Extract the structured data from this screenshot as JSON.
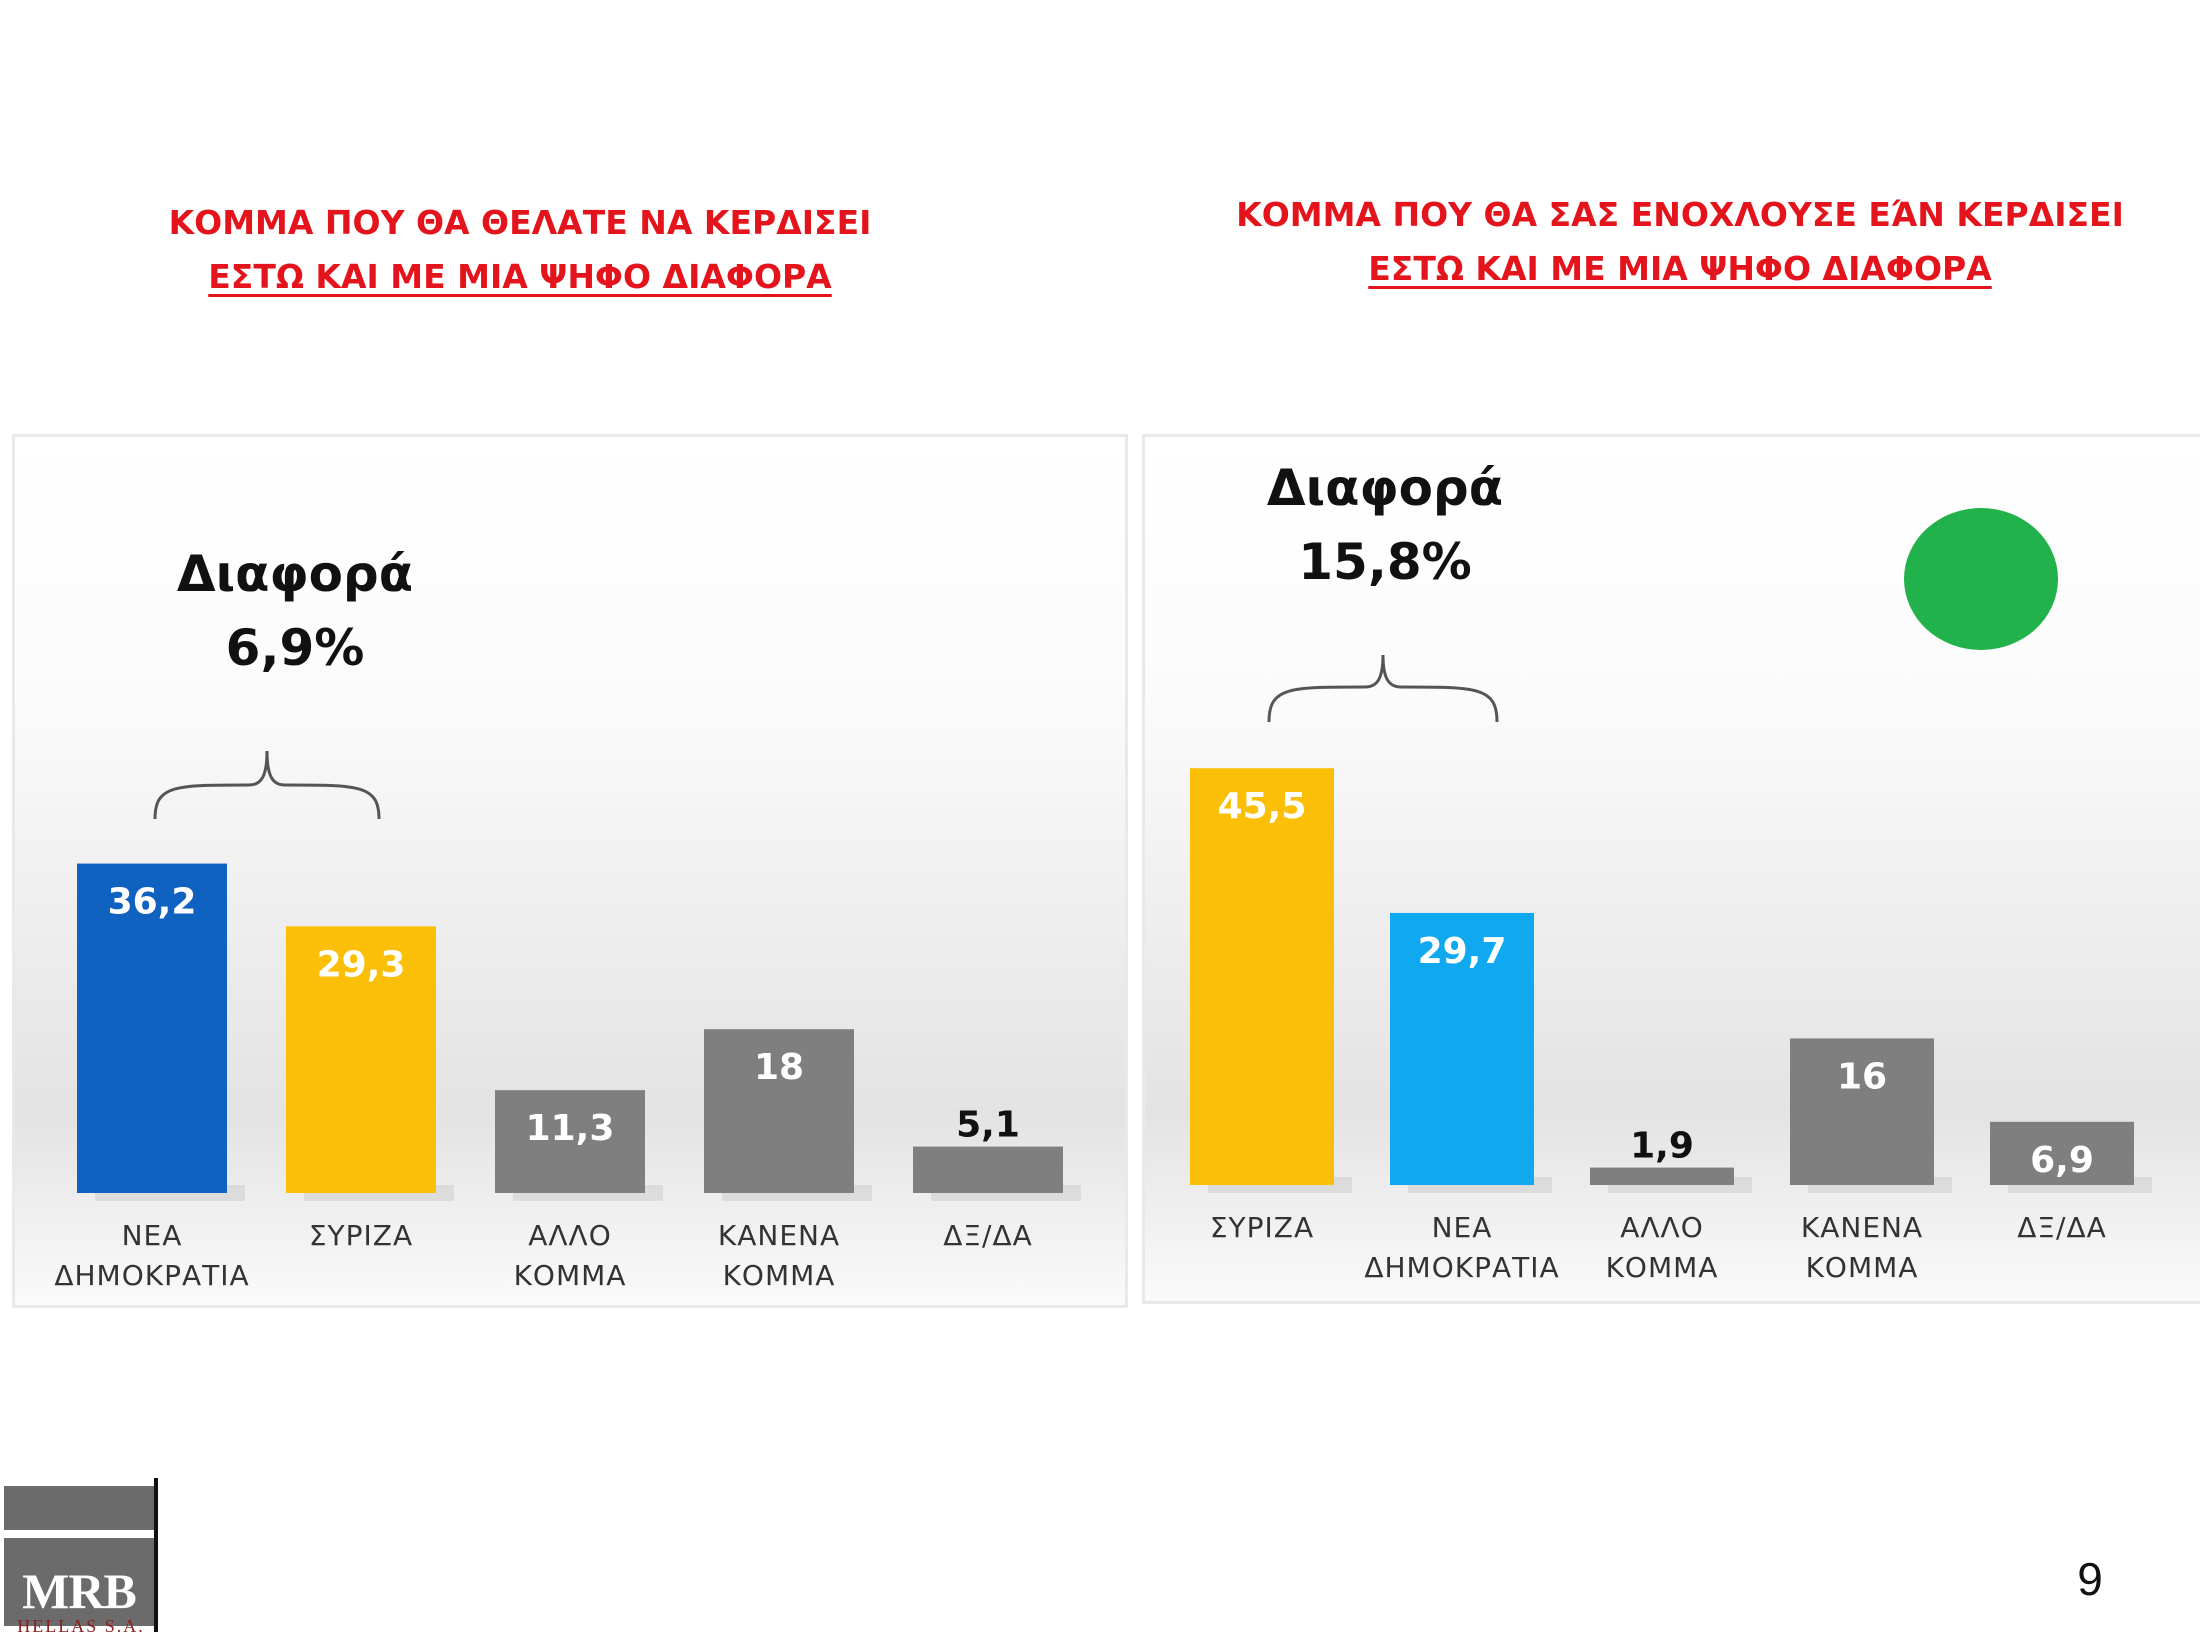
{
  "slide": {
    "page_number": "9",
    "logo_text": "MRB",
    "logo_subtext": "HELLAS S.A."
  },
  "colors": {
    "title_red": "#e3141b",
    "nd_blue_dark": "#0f62c0",
    "nd_blue_light": "#10a9ef",
    "syriza_yellow": "#fcbf08",
    "gray": "#7f7f7f",
    "green_dot": "#22b24c"
  },
  "chart_data": [
    {
      "type": "bar",
      "title_line1": "ΚΟΜΜΑ ΠΟΥ ΘΑ ΘΕΛΑΤΕ ΝΑ ΚΕΡΔΙΣΕΙ",
      "title_line2": "ΕΣΤΩ ΚΑΙ ΜΕ ΜΙΑ ΨΗΦΟ ΔΙΑΦΟΡΑ",
      "difference_label": "Διαφορά",
      "difference_value": "6,9%",
      "ylim": [
        0,
        40
      ],
      "categories": [
        [
          "ΝΕΑ",
          "ΔΗΜΟΚΡΑΤΙΑ"
        ],
        [
          "ΣΥΡΙΖΑ"
        ],
        [
          "ΑΛΛΟ",
          "ΚΟΜΜΑ"
        ],
        [
          "ΚΑΝΕΝΑ",
          "ΚΟΜΜΑ"
        ],
        [
          "ΔΞ/ΔΑ"
        ]
      ],
      "values": [
        36.2,
        29.3,
        11.3,
        18,
        5.1
      ],
      "value_labels": [
        "36,2",
        "29,3",
        "11,3",
        "18",
        "5,1"
      ],
      "bar_colors": [
        "#0f62c0",
        "#fcbf08",
        "#7f7f7f",
        "#7f7f7f",
        "#7f7f7f"
      ],
      "label_colors": [
        "#ffffff",
        "#ffffff",
        "#ffffff",
        "#ffffff",
        "#ffffff"
      ]
    },
    {
      "type": "bar",
      "title_line1": "ΚΟΜΜΑ ΠΟΥ ΘΑ ΣΑΣ ΕΝΟΧΛΟΥΣΕ ΕΆΝ ΚΕΡΔΙΣΕΙ",
      "title_line2": "ΕΣΤΩ ΚΑΙ ΜΕ ΜΙΑ ΨΗΦΟ ΔΙΑΦΟΡΑ",
      "difference_label": "Διαφορά",
      "difference_value": "15,8%",
      "ylim": [
        0,
        50
      ],
      "categories": [
        [
          "ΣΥΡΙΖΑ"
        ],
        [
          "ΝΕΑ",
          "ΔΗΜΟΚΡΑΤΙΑ"
        ],
        [
          "ΑΛΛΟ",
          "ΚΟΜΜΑ"
        ],
        [
          "ΚΑΝΕΝΑ",
          "ΚΟΜΜΑ"
        ],
        [
          "ΔΞ/ΔΑ"
        ]
      ],
      "values": [
        45.5,
        29.7,
        1.9,
        16,
        6.9
      ],
      "value_labels": [
        "45,5",
        "29,7",
        "1,9",
        "16",
        "6,9"
      ],
      "bar_colors": [
        "#fcbf08",
        "#10a9ef",
        "#7f7f7f",
        "#7f7f7f",
        "#7f7f7f"
      ],
      "label_colors": [
        "#ffffff",
        "#ffffff",
        "#111111",
        "#ffffff",
        "#ffffff"
      ]
    }
  ]
}
